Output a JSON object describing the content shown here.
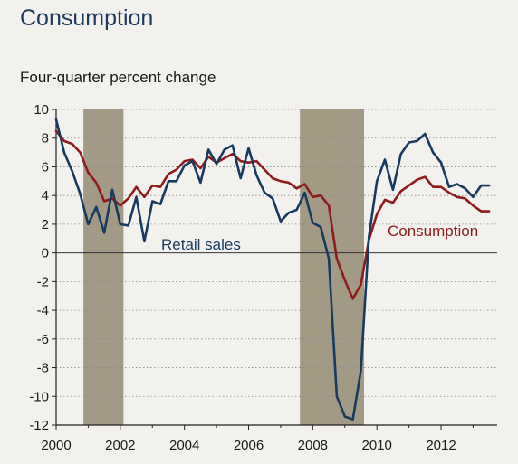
{
  "title": "Consumption",
  "subtitle": "Four-quarter percent change",
  "colors": {
    "background": "#f2f1ee",
    "recession": "#a39a86",
    "consumption": "#8e1c1c",
    "retail": "#173a5e",
    "title": "#1d3a5c"
  },
  "chart_data": {
    "type": "line",
    "xlim": [
      2000,
      2013.75
    ],
    "ylim": [
      -12,
      10
    ],
    "x_ticks": [
      "2000",
      "2002",
      "2004",
      "2006",
      "2008",
      "2010",
      "2012"
    ],
    "y_ticks": [
      "10",
      "8",
      "6",
      "4",
      "2",
      "0",
      "-2",
      "-4",
      "-6",
      "-8",
      "-10",
      "-12"
    ],
    "grid": "horizontal dotted",
    "recessions": [
      [
        2000.85,
        2002.1
      ],
      [
        2007.6,
        2009.6
      ]
    ],
    "series": [
      {
        "name": "Retail sales",
        "x": [
          2000.0,
          2000.25,
          2000.5,
          2000.75,
          2001.0,
          2001.25,
          2001.5,
          2001.75,
          2002.0,
          2002.25,
          2002.5,
          2002.75,
          2003.0,
          2003.25,
          2003.5,
          2003.75,
          2004.0,
          2004.25,
          2004.5,
          2004.75,
          2005.0,
          2005.25,
          2005.5,
          2005.75,
          2006.0,
          2006.25,
          2006.5,
          2006.75,
          2007.0,
          2007.25,
          2007.5,
          2007.75,
          2008.0,
          2008.25,
          2008.5,
          2008.75,
          2009.0,
          2009.25,
          2009.5,
          2009.75,
          2010.0,
          2010.25,
          2010.5,
          2010.75,
          2011.0,
          2011.25,
          2011.5,
          2011.75,
          2012.0,
          2012.25,
          2012.5,
          2012.75,
          2013.0,
          2013.25,
          2013.5
        ],
        "values": [
          9.3,
          7.0,
          5.7,
          4.1,
          2.0,
          3.2,
          1.4,
          4.4,
          2.0,
          1.9,
          3.9,
          0.8,
          3.6,
          3.4,
          5.0,
          5.0,
          6.1,
          6.4,
          4.9,
          7.2,
          6.2,
          7.2,
          7.5,
          5.2,
          7.3,
          5.4,
          4.2,
          3.8,
          2.2,
          2.8,
          3.0,
          4.2,
          2.1,
          1.8,
          -0.4,
          -10.0,
          -11.4,
          -11.6,
          -8.2,
          1.1,
          5.0,
          6.5,
          4.4,
          6.9,
          7.7,
          7.8,
          8.3,
          7.0,
          6.3,
          4.6,
          4.8,
          4.5,
          3.9,
          4.7,
          4.7
        ]
      },
      {
        "name": "Consumption",
        "x": [
          2000.0,
          2000.25,
          2000.5,
          2000.75,
          2001.0,
          2001.25,
          2001.5,
          2001.75,
          2002.0,
          2002.25,
          2002.5,
          2002.75,
          2003.0,
          2003.25,
          2003.5,
          2003.75,
          2004.0,
          2004.25,
          2004.5,
          2004.75,
          2005.0,
          2005.25,
          2005.5,
          2005.75,
          2006.0,
          2006.25,
          2006.5,
          2006.75,
          2007.0,
          2007.25,
          2007.5,
          2007.75,
          2008.0,
          2008.25,
          2008.5,
          2008.75,
          2009.0,
          2009.25,
          2009.5,
          2009.75,
          2010.0,
          2010.25,
          2010.5,
          2010.75,
          2011.0,
          2011.25,
          2011.5,
          2011.75,
          2012.0,
          2012.25,
          2012.5,
          2012.75,
          2013.0,
          2013.25,
          2013.5
        ],
        "values": [
          8.5,
          7.8,
          7.6,
          7.0,
          5.6,
          4.9,
          3.6,
          3.8,
          3.3,
          3.8,
          4.6,
          3.9,
          4.7,
          4.6,
          5.5,
          5.8,
          6.4,
          6.5,
          5.9,
          6.7,
          6.3,
          6.6,
          6.9,
          6.4,
          6.3,
          6.4,
          5.8,
          5.2,
          5.0,
          4.9,
          4.5,
          4.8,
          3.9,
          4.0,
          3.3,
          -0.4,
          -1.9,
          -3.2,
          -2.2,
          0.9,
          2.7,
          3.7,
          3.5,
          4.3,
          4.7,
          5.1,
          5.3,
          4.6,
          4.6,
          4.2,
          3.9,
          3.8,
          3.3,
          2.9,
          2.9
        ]
      }
    ],
    "annotations": {
      "retail_label": "Retail sales",
      "consumption_label": "Consumption"
    }
  }
}
